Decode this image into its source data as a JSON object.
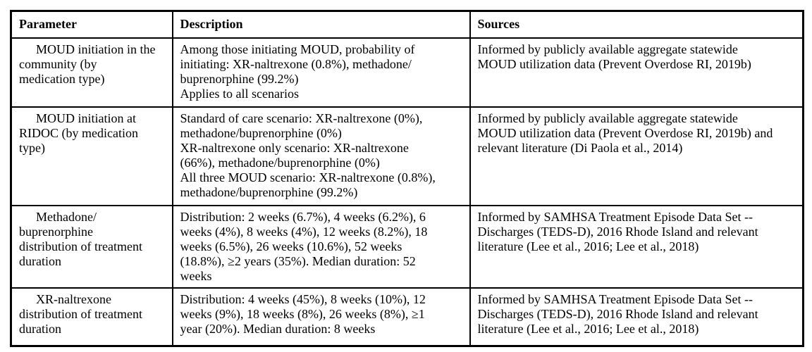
{
  "table": {
    "headers": {
      "parameter": "Parameter",
      "description": "Description",
      "sources": "Sources"
    },
    "rows": [
      {
        "parameter": "MOUD initiation in the\ncommunity (by\nmedication type)",
        "description": "Among those initiating MOUD, probability of\ninitiating: XR-naltrexone (0.8%), methadone/\nbuprenorphine (99.2%)\nApplies to all scenarios",
        "sources": "Informed by publicly available aggregate statewide\nMOUD utilization data (Prevent Overdose RI, 2019b)"
      },
      {
        "parameter": "MOUD initiation at\nRIDOC (by medication\ntype)",
        "description": "Standard of care scenario: XR-naltrexone (0%),\nmethadone/buprenorphine (0%)\nXR-naltrexone only scenario: XR-naltrexone\n(66%), methadone/buprenorphine (0%)\nAll three MOUD scenario: XR-naltrexone (0.8%),\nmethadone/buprenorphine (99.2%)",
        "sources": "Informed by publicly available aggregate statewide\nMOUD utilization data (Prevent Overdose RI, 2019b) and\nrelevant literature (Di Paola et al., 2014)"
      },
      {
        "parameter": "Methadone/\nbuprenorphine\ndistribution of treatment\nduration",
        "description": "Distribution: 2 weeks (6.7%), 4 weeks (6.2%), 6\nweeks (4%), 8 weeks (4%), 12 weeks (8.2%), 18\nweeks (6.5%), 26 weeks (10.6%), 52 weeks\n(18.8%), ≥2 years (35%). Median duration: 52\nweeks",
        "sources": "Informed by SAMHSA Treatment Episode Data Set --\nDischarges (TEDS-D), 2016 Rhode Island and relevant\nliterature (Lee et al., 2016; Lee et al., 2018)"
      },
      {
        "parameter": "XR-naltrexone\ndistribution of treatment\nduration",
        "description": "Distribution: 4 weeks (45%), 8 weeks (10%), 12\nweeks (9%), 18 weeks (8%), 26 weeks (8%), ≥1\nyear (20%). Median duration: 8 weeks",
        "sources": "Informed by SAMHSA Treatment Episode Data Set --\nDischarges (TEDS-D), 2016 Rhode Island and relevant\nliterature (Lee et al., 2016; Lee et al., 2018)"
      }
    ]
  }
}
